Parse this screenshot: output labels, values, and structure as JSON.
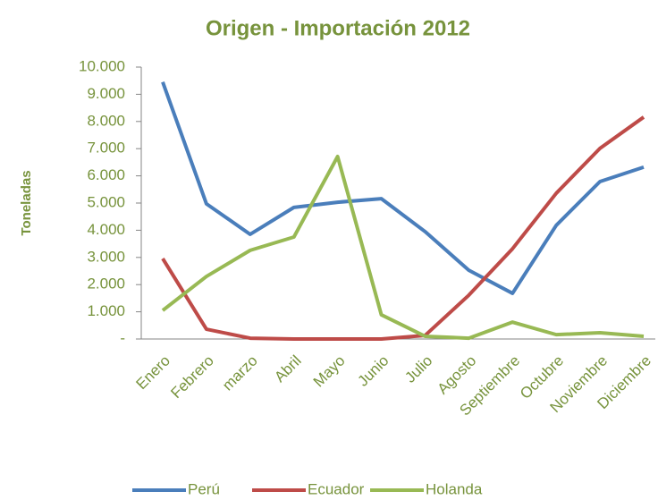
{
  "chart_data": {
    "type": "line",
    "title": "Origen - Importación 2012",
    "y_label": "Toneladas",
    "categories": [
      "Enero",
      "Febrero",
      "marzo",
      "Abril",
      "Mayo",
      "Junio",
      "Julio",
      "Agosto",
      "Septiembre",
      "Octubre",
      "Noviembre",
      "Diciembre"
    ],
    "series": [
      {
        "name": "Perú",
        "color": "#4a7ebb",
        "values": [
          9450,
          4970,
          3850,
          4840,
          5030,
          5160,
          3950,
          2530,
          1680,
          4180,
          5790,
          6320
        ]
      },
      {
        "name": "Ecuador",
        "color": "#be4b48",
        "values": [
          2960,
          360,
          30,
          0,
          0,
          0,
          130,
          1610,
          3320,
          5360,
          7010,
          8160
        ]
      },
      {
        "name": "Holanda",
        "color": "#98b954",
        "values": [
          1050,
          2300,
          3260,
          3750,
          6710,
          890,
          100,
          30,
          620,
          160,
          230,
          100
        ]
      }
    ],
    "ylim": [
      0,
      10000
    ],
    "yticks": [
      {
        "value": 0,
        "label": "-"
      },
      {
        "value": 1000,
        "label": "1.000"
      },
      {
        "value": 2000,
        "label": "2.000"
      },
      {
        "value": 3000,
        "label": "3.000"
      },
      {
        "value": 4000,
        "label": "4.000"
      },
      {
        "value": 5000,
        "label": "5.000"
      },
      {
        "value": 6000,
        "label": "6.000"
      },
      {
        "value": 7000,
        "label": "7.000"
      },
      {
        "value": 8000,
        "label": "8.000"
      },
      {
        "value": 9000,
        "label": "9.000"
      },
      {
        "value": 10000,
        "label": "10.000"
      }
    ],
    "grid": false,
    "legend": "bottom"
  }
}
